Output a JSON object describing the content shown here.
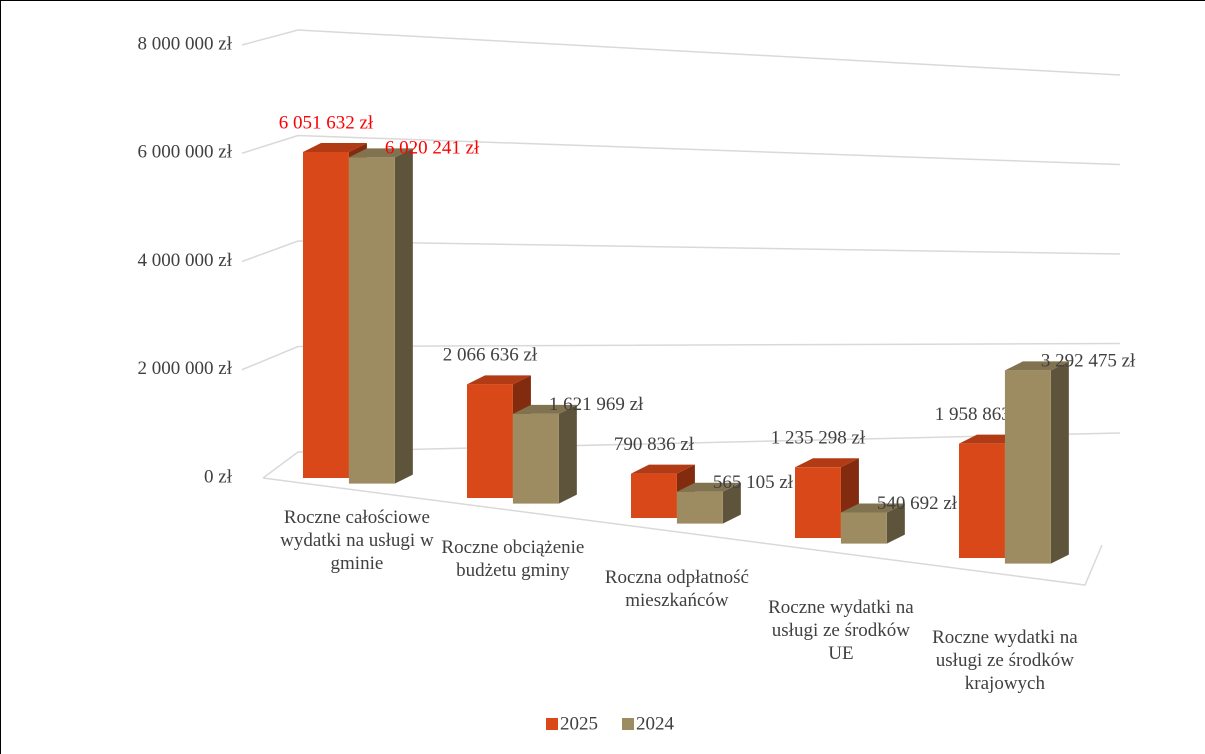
{
  "chart_data": {
    "type": "bar3d",
    "categories": [
      "Roczne całościowe wydatki na usługi w gminie",
      "Roczne obciążenie budżetu gminy",
      "Roczna odpłatność mieszkańców",
      "Roczne wydatki na usługi ze środków UE",
      "Roczne wydatki na usługi ze środków krajowych"
    ],
    "series": [
      {
        "name": "2025",
        "color": "#d84818",
        "values": [
          6051632,
          2066636,
          790836,
          1235298,
          1958863
        ],
        "value_labels": [
          "6 051 632 zł",
          "2 066 636 zł",
          "790 836 zł",
          "1 235 298 zł",
          "1 958 863 zł"
        ]
      },
      {
        "name": "2024",
        "color": "#9d8b62",
        "values": [
          6020241,
          1621969,
          565105,
          540692,
          3292475
        ],
        "value_labels": [
          "6 020 241 zł",
          "1 621 969 zł",
          "565 105 zł",
          "540 692 zł",
          "3 292 475 zł"
        ]
      }
    ],
    "ylim": [
      0,
      8000000
    ],
    "yticks": [
      {
        "value": 0,
        "label": "0 zł"
      },
      {
        "value": 2000000,
        "label": "2 000 000 zł"
      },
      {
        "value": 4000000,
        "label": "4 000 000 zł"
      },
      {
        "value": 6000000,
        "label": "6 000 000 zł"
      },
      {
        "value": 8000000,
        "label": "8 000 000 zł"
      }
    ],
    "grid": true,
    "legend": "bottom",
    "highlight": {
      "category": 0,
      "color": "#ff0000"
    }
  }
}
